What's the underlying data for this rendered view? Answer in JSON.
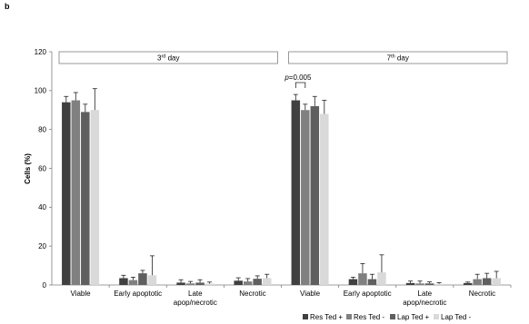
{
  "panel_label": "b",
  "chart_data": {
    "type": "bar",
    "ylabel": "Cells (%)",
    "ylim": [
      0,
      120
    ],
    "yticks": [
      0,
      20,
      40,
      60,
      80,
      100,
      120
    ],
    "grid": false,
    "legend_position": "bottom-right",
    "panels": [
      {
        "title_main": "3",
        "title_sup": "rd",
        "title_rest": " day",
        "categories": [
          "Viable",
          "Early apoptotic",
          "Late apop/necrotic",
          "Necrotic"
        ],
        "series": [
          {
            "name": "Res Ted +",
            "values": [
              94,
              3.5,
              1.2,
              2.2
            ],
            "errors": [
              3,
              1.5,
              1.5,
              1.5
            ]
          },
          {
            "name": "Res Ted -",
            "values": [
              95,
              2.5,
              0.8,
              1.8
            ],
            "errors": [
              4,
              1.5,
              1.0,
              1.5
            ]
          },
          {
            "name": "Lap Ted +",
            "values": [
              89,
              6,
              1.2,
              3.2
            ],
            "errors": [
              4,
              1.5,
              1.5,
              1.5
            ]
          },
          {
            "name": "Lap Ted -",
            "values": [
              90,
              5,
              0.7,
              3.5
            ],
            "errors": [
              11,
              10,
              0.8,
              2
            ]
          }
        ]
      },
      {
        "title_main": "7",
        "title_sup": "th",
        "title_rest": " day",
        "annotation": {
          "italic": "p",
          "text": "=0.005"
        },
        "categories": [
          "Viable",
          "Early apoptotic",
          "Late apop/necrotic",
          "Necrotic"
        ],
        "series": [
          {
            "name": "Res Ted +",
            "values": [
              95,
              3,
              1,
              1
            ],
            "errors": [
              3,
              1,
              1,
              0.5
            ]
          },
          {
            "name": "Res Ted -",
            "values": [
              90,
              6,
              0.8,
              3
            ],
            "errors": [
              3,
              5,
              1.2,
              2.5
            ]
          },
          {
            "name": "Lap Ted +",
            "values": [
              92,
              3,
              0.8,
              3.5
            ],
            "errors": [
              5,
              2.5,
              0.8,
              2.5
            ]
          },
          {
            "name": "Lap Ted -",
            "values": [
              88,
              6.5,
              0.6,
              3.5
            ],
            "errors": [
              7,
              9,
              0.6,
              3.5
            ]
          }
        ]
      }
    ]
  },
  "colors": {
    "Res Ted +": "#404040",
    "Res Ted -": "#808080",
    "Lap Ted +": "#5f5f5f",
    "Lap Ted -": "#d9d9d9"
  }
}
